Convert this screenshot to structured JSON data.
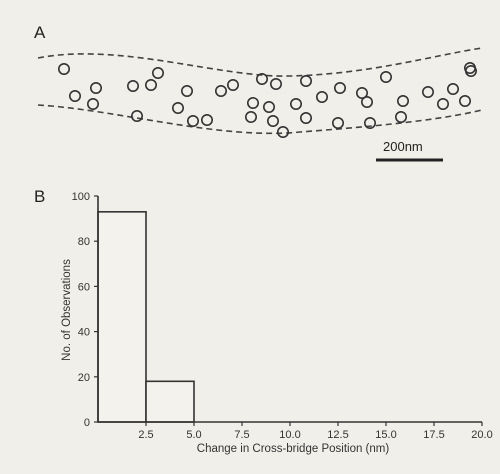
{
  "panel_a": {
    "label": "A",
    "scale_bar_label": "200nm",
    "particle_count": 42
  },
  "chart_data": {
    "type": "bar",
    "panel_label": "B",
    "title": "",
    "xlabel": "Change in Cross-bridge Position (nm)",
    "ylabel": "No. of Observations",
    "xlim": [
      0,
      20
    ],
    "ylim": [
      0,
      100
    ],
    "x_ticks": [
      "2.5",
      "5.0",
      "7.5",
      "10.0",
      "12.5",
      "15.0",
      "17.5",
      "20.0"
    ],
    "y_ticks": [
      "0",
      "20",
      "40",
      "60",
      "80",
      "100"
    ],
    "bins": [
      {
        "start": 0,
        "end": 2.5,
        "value": 93
      },
      {
        "start": 2.5,
        "end": 5.0,
        "value": 18
      }
    ],
    "grid": false,
    "bar_color": "#f4f2ec",
    "edge_color": "#333333"
  }
}
